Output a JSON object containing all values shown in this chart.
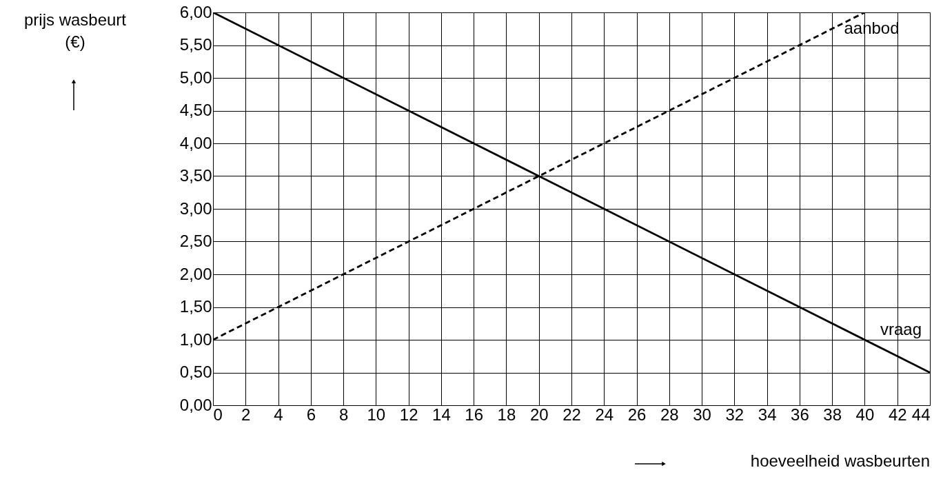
{
  "chart_data": {
    "type": "line",
    "xlabel": "hoeveelheid wasbeurten",
    "ylabel": "prijs wasbeurt (€)",
    "series": [
      {
        "name": "vraag",
        "color": "#000000",
        "line_style": "solid",
        "x": [
          0,
          44
        ],
        "values": [
          6.0,
          0.5
        ]
      },
      {
        "name": "aanbod",
        "color": "#000000",
        "line_style": "dashed",
        "x": [
          0,
          40
        ],
        "values": [
          1.0,
          6.0
        ]
      }
    ],
    "xlim": [
      0,
      44
    ],
    "xticks": [
      0,
      2,
      4,
      6,
      8,
      10,
      12,
      14,
      16,
      18,
      20,
      22,
      24,
      26,
      28,
      30,
      32,
      34,
      36,
      38,
      40,
      42,
      44
    ],
    "ylim": [
      0,
      6
    ],
    "yticks": [
      {
        "value": 0,
        "label": "0,00"
      },
      {
        "value": 0.5,
        "label": "0,50"
      },
      {
        "value": 1,
        "label": "1,00"
      },
      {
        "value": 1.5,
        "label": "1,50"
      },
      {
        "value": 2,
        "label": "2,00"
      },
      {
        "value": 2.5,
        "label": "2,50"
      },
      {
        "value": 3,
        "label": "3,00"
      },
      {
        "value": 3.5,
        "label": "3,50"
      },
      {
        "value": 4,
        "label": "4,00"
      },
      {
        "value": 4.5,
        "label": "4,50"
      },
      {
        "value": 5,
        "label": "5,00"
      },
      {
        "value": 5.5,
        "label": "5,50"
      },
      {
        "value": 6,
        "label": "6,00"
      }
    ],
    "grid": true,
    "marker": "none"
  }
}
